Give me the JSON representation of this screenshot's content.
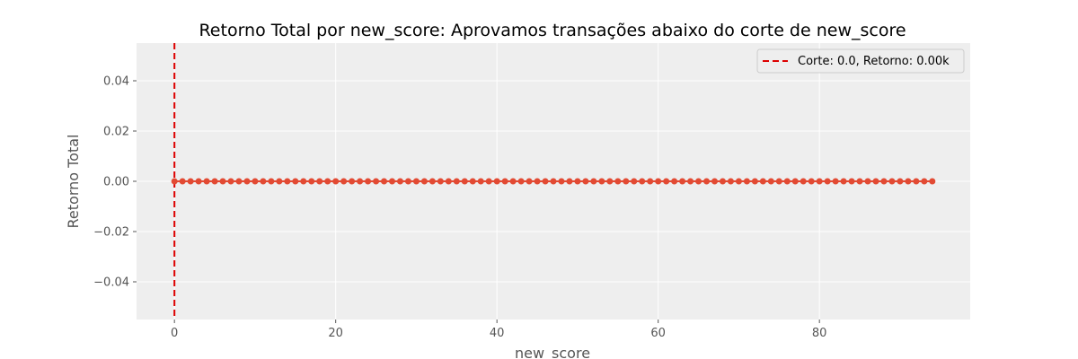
{
  "chart_data": {
    "type": "line",
    "title": "Retorno Total por new_score: Aprovamos transações abaixo do corte de new_score",
    "xlabel": "new_score",
    "ylabel": "Retorno Total",
    "xlim": [
      -4.7,
      98.7
    ],
    "ylim": [
      -0.055,
      0.055
    ],
    "xticks": [
      0,
      20,
      40,
      60,
      80
    ],
    "xtick_labels": [
      "0",
      "20",
      "40",
      "60",
      "80"
    ],
    "yticks": [
      -0.04,
      -0.02,
      0.0,
      0.02,
      0.04
    ],
    "ytick_labels": [
      "−0.04",
      "−0.02",
      "0.00",
      "0.02",
      "0.04"
    ],
    "grid": true,
    "legend_position": "top-right",
    "series": [
      {
        "color": "#E24A33",
        "marker": "circle",
        "x": [
          0,
          1,
          2,
          3,
          4,
          5,
          6,
          7,
          8,
          9,
          10,
          11,
          12,
          13,
          14,
          15,
          16,
          17,
          18,
          19,
          20,
          21,
          22,
          23,
          24,
          25,
          26,
          27,
          28,
          29,
          30,
          31,
          32,
          33,
          34,
          35,
          36,
          37,
          38,
          39,
          40,
          41,
          42,
          43,
          44,
          45,
          46,
          47,
          48,
          49,
          50,
          51,
          52,
          53,
          54,
          55,
          56,
          57,
          58,
          59,
          60,
          61,
          62,
          63,
          64,
          65,
          66,
          67,
          68,
          69,
          70,
          71,
          72,
          73,
          74,
          75,
          76,
          77,
          78,
          79,
          80,
          81,
          82,
          83,
          84,
          85,
          86,
          87,
          88,
          89,
          90,
          91,
          92,
          93,
          94
        ],
        "y": [
          0,
          0,
          0,
          0,
          0,
          0,
          0,
          0,
          0,
          0,
          0,
          0,
          0,
          0,
          0,
          0,
          0,
          0,
          0,
          0,
          0,
          0,
          0,
          0,
          0,
          0,
          0,
          0,
          0,
          0,
          0,
          0,
          0,
          0,
          0,
          0,
          0,
          0,
          0,
          0,
          0,
          0,
          0,
          0,
          0,
          0,
          0,
          0,
          0,
          0,
          0,
          0,
          0,
          0,
          0,
          0,
          0,
          0,
          0,
          0,
          0,
          0,
          0,
          0,
          0,
          0,
          0,
          0,
          0,
          0,
          0,
          0,
          0,
          0,
          0,
          0,
          0,
          0,
          0,
          0,
          0,
          0,
          0,
          0,
          0,
          0,
          0,
          0,
          0,
          0,
          0,
          0,
          0,
          0,
          0
        ]
      }
    ],
    "cutoff": {
      "x": 0.0,
      "color": "#DD0000",
      "style": "dashed",
      "label": "Corte: 0.0, Retorno: 0.00k"
    }
  }
}
